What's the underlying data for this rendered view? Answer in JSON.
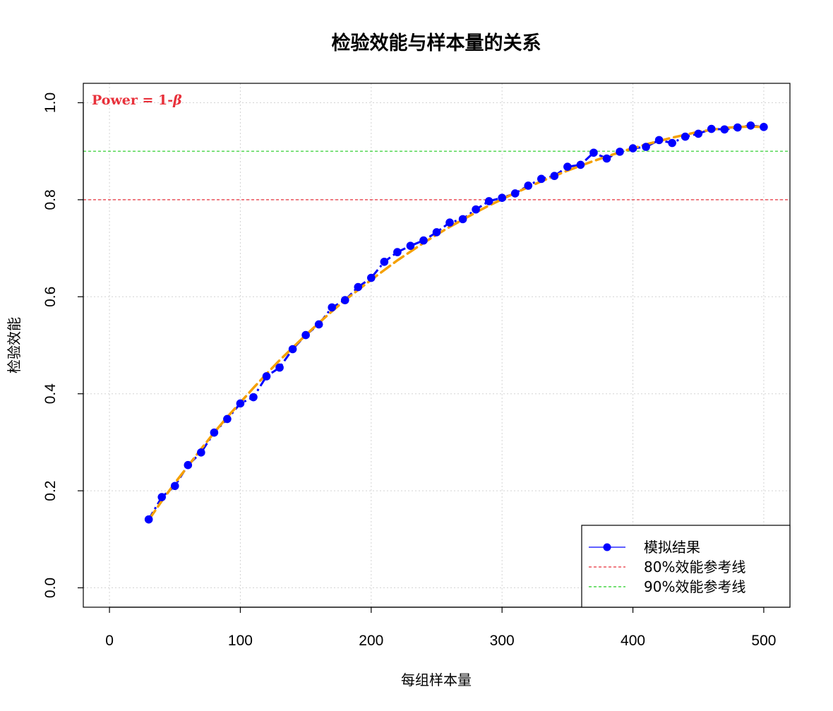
{
  "chart_data": {
    "type": "line",
    "title": "检验效能与样本量的关系",
    "xlabel": "每组样本量",
    "ylabel": "检验效能",
    "xlim": [
      -20,
      520
    ],
    "ylim": [
      -0.04,
      1.04
    ],
    "x_ticks": [
      0,
      100,
      200,
      300,
      400,
      500
    ],
    "x_tick_labels": [
      "0",
      "100",
      "200",
      "300",
      "400",
      "500"
    ],
    "y_ticks": [
      0.0,
      0.2,
      0.4,
      0.6,
      0.8,
      1.0
    ],
    "y_tick_labels": [
      "0.0",
      "0.2",
      "0.4",
      "0.6",
      "0.8",
      "1.0"
    ],
    "grid": true,
    "annotation": {
      "text": "Power = 1-",
      "symbol": "β",
      "color": "#e8313b"
    },
    "series": [
      {
        "name": "模拟结果",
        "color": "#0000ff",
        "x": [
          30,
          40,
          50,
          60,
          70,
          80,
          90,
          100,
          110,
          120,
          130,
          140,
          150,
          160,
          170,
          180,
          190,
          200,
          210,
          220,
          230,
          240,
          250,
          260,
          270,
          280,
          290,
          300,
          310,
          320,
          330,
          340,
          350,
          360,
          370,
          380,
          390,
          400,
          410,
          420,
          430,
          440,
          450,
          460,
          470,
          480,
          490,
          500
        ],
        "y": [
          0.141,
          0.187,
          0.21,
          0.253,
          0.279,
          0.32,
          0.348,
          0.38,
          0.393,
          0.436,
          0.454,
          0.492,
          0.521,
          0.543,
          0.578,
          0.593,
          0.62,
          0.639,
          0.672,
          0.692,
          0.705,
          0.716,
          0.733,
          0.753,
          0.76,
          0.78,
          0.797,
          0.804,
          0.813,
          0.829,
          0.843,
          0.849,
          0.868,
          0.872,
          0.897,
          0.885,
          0.899,
          0.906,
          0.909,
          0.923,
          0.917,
          0.93,
          0.936,
          0.946,
          0.945,
          0.949,
          0.953,
          0.95
        ]
      }
    ],
    "fit_curve": {
      "color": "#f5a000",
      "x": [
        30,
        40,
        50,
        60,
        70,
        80,
        90,
        100,
        110,
        120,
        130,
        140,
        150,
        160,
        170,
        180,
        190,
        200,
        210,
        220,
        230,
        240,
        250,
        260,
        270,
        280,
        290,
        300,
        310,
        320,
        330,
        340,
        350,
        360,
        370,
        380,
        390,
        400,
        410,
        420,
        430,
        440,
        450,
        460,
        470,
        480,
        490,
        500
      ],
      "y": [
        0.14,
        0.179,
        0.216,
        0.251,
        0.286,
        0.32,
        0.352,
        0.382,
        0.412,
        0.441,
        0.469,
        0.495,
        0.521,
        0.546,
        0.57,
        0.593,
        0.614,
        0.635,
        0.655,
        0.675,
        0.693,
        0.711,
        0.728,
        0.744,
        0.759,
        0.774,
        0.788,
        0.801,
        0.814,
        0.826,
        0.838,
        0.849,
        0.86,
        0.87,
        0.88,
        0.889,
        0.898,
        0.906,
        0.914,
        0.921,
        0.928,
        0.934,
        0.94,
        0.944,
        0.948,
        0.95,
        0.951,
        0.95
      ]
    },
    "reference_lines": [
      {
        "name": "80%效能参考线",
        "y": 0.8,
        "color": "#e8313b"
      },
      {
        "name": "90%效能参考线",
        "y": 0.9,
        "color": "#22cc22"
      }
    ],
    "legend_position": "bottom-right"
  }
}
